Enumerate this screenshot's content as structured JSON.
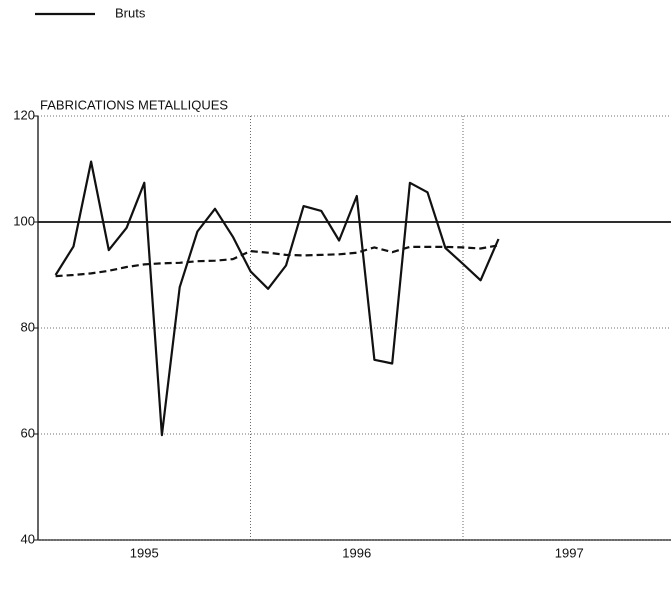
{
  "chart_data": {
    "type": "line",
    "title": "FABRICATIONS METALLIQUES",
    "x": [
      1995.083,
      1995.167,
      1995.25,
      1995.333,
      1995.417,
      1995.5,
      1995.583,
      1995.667,
      1995.75,
      1995.833,
      1995.917,
      1996.0,
      1996.083,
      1996.167,
      1996.25,
      1996.333,
      1996.417,
      1996.5,
      1996.583,
      1996.667,
      1996.75,
      1996.833,
      1996.917,
      1997.0,
      1997.083,
      1997.167
    ],
    "series": [
      {
        "name": "Bruts",
        "color": "#111111",
        "dash": false,
        "values": [
          90.0,
          95.4,
          111.4,
          94.7,
          98.9,
          107.4,
          59.8,
          87.7,
          98.2,
          102.5,
          97.2,
          90.7,
          87.4,
          91.8,
          103.0,
          102.1,
          96.5,
          104.9,
          74.0,
          73.3,
          107.4,
          105.6,
          95.1,
          92.1,
          89.0,
          96.8
        ]
      },
      {
        "color": "#111111",
        "dash": true,
        "values": [
          89.8,
          90.0,
          90.3,
          90.8,
          91.5,
          92.0,
          92.2,
          92.3,
          92.6,
          92.7,
          93.0,
          94.5,
          94.2,
          93.8,
          93.7,
          93.8,
          93.9,
          94.2,
          95.2,
          94.3,
          95.3,
          95.3,
          95.3,
          95.2,
          95.0,
          95.6
        ]
      }
    ],
    "xlim": [
      1995,
      1998
    ],
    "xticks": [
      {
        "value": 1995.5,
        "label": "1995"
      },
      {
        "value": 1996.5,
        "label": "1996"
      },
      {
        "value": 1997.5,
        "label": "1997"
      }
    ],
    "xgrid": [
      1996,
      1997
    ],
    "ylim": [
      40,
      120
    ],
    "yticks": [
      40,
      60,
      80,
      100,
      120
    ],
    "grid": true,
    "reference_line": 100,
    "legend": "top-left"
  }
}
